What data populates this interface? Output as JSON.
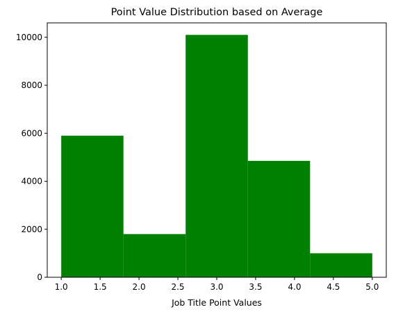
{
  "chart_data": {
    "type": "bar",
    "title": "Point Value Distribution based on Average",
    "xlabel": "Job Title Point Values",
    "ylabel": "",
    "bin_edges": [
      1.0,
      1.8,
      2.6,
      3.4,
      4.2,
      5.0
    ],
    "values": [
      5900,
      1800,
      10100,
      4850,
      1000
    ],
    "bar_color": "#008000",
    "xlim": [
      0.82,
      5.18
    ],
    "ylim": [
      0,
      10600
    ],
    "x_ticks": [
      1.0,
      1.5,
      2.0,
      2.5,
      3.0,
      3.5,
      4.0,
      4.5,
      5.0
    ],
    "x_tick_labels": [
      "1.0",
      "1.5",
      "2.0",
      "2.5",
      "3.0",
      "3.5",
      "4.0",
      "4.5",
      "5.0"
    ],
    "y_ticks": [
      0,
      2000,
      4000,
      6000,
      8000,
      10000
    ],
    "y_tick_labels": [
      "0",
      "2000",
      "4000",
      "6000",
      "8000",
      "10000"
    ],
    "grid": false,
    "legend": false
  }
}
